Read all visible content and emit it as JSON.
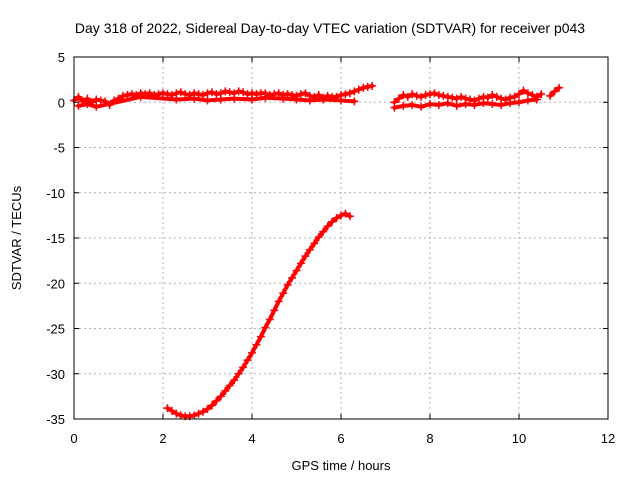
{
  "chart_data": {
    "type": "scatter",
    "title": "Day 318 of 2022, Sidereal Day-to-day VTEC variation (SDTVAR) for receiver p043",
    "xlabel": "GPS time / hours",
    "ylabel": "SDTVAR / TECUs",
    "xlim": [
      0,
      12
    ],
    "ylim": [
      -35,
      5
    ],
    "xticks": [
      0,
      2,
      4,
      6,
      8,
      10,
      12
    ],
    "yticks": [
      5,
      0,
      -5,
      -10,
      -15,
      -20,
      -25,
      -30,
      -35
    ],
    "grid": true,
    "legend": "none",
    "marker": "plus",
    "color": "#ff0000",
    "series": [
      {
        "x": [
          0.0,
          0.1,
          0.2,
          0.3,
          0.4,
          0.5,
          0.6,
          0.7,
          0.8,
          0.9,
          1.0,
          1.1,
          1.2,
          1.3,
          1.4,
          1.5,
          1.6,
          1.7,
          1.8,
          1.9,
          2.0,
          2.1,
          2.2,
          2.3,
          2.4,
          2.5,
          2.6,
          2.7,
          2.8,
          2.9,
          3.0,
          3.1,
          3.2,
          3.3,
          3.4,
          3.5,
          3.6,
          3.7,
          3.8,
          3.9,
          4.0,
          4.1,
          4.2,
          4.3,
          4.4,
          4.5,
          4.6,
          4.7,
          4.8,
          4.9,
          5.0,
          5.1,
          5.2,
          5.3,
          5.4,
          5.5,
          5.6,
          5.7,
          5.8,
          5.9,
          6.0,
          6.1,
          6.2,
          6.3,
          6.4,
          6.5,
          6.6,
          6.7
        ],
        "y": [
          0.2,
          0.6,
          0.1,
          0.4,
          0.0,
          0.3,
          0.2,
          0.1,
          -0.3,
          0.2,
          0.4,
          0.7,
          0.8,
          0.9,
          0.8,
          1.0,
          0.9,
          1.0,
          0.8,
          0.9,
          1.0,
          0.9,
          0.8,
          1.0,
          1.1,
          0.9,
          0.8,
          1.0,
          0.9,
          0.8,
          1.0,
          1.1,
          0.9,
          1.0,
          1.2,
          1.1,
          1.0,
          1.2,
          1.1,
          0.9,
          1.0,
          0.9,
          1.0,
          1.0,
          0.8,
          0.9,
          1.0,
          0.8,
          0.9,
          0.8,
          0.7,
          0.9,
          1.0,
          0.7,
          0.6,
          0.8,
          0.5,
          0.7,
          0.6,
          0.6,
          0.8,
          0.9,
          1.0,
          1.2,
          1.4,
          1.6,
          1.7,
          1.8
        ]
      },
      {
        "x": [
          0.1,
          0.3,
          0.5,
          1.5,
          2.3,
          2.7,
          3.0,
          3.3,
          3.6,
          4.0,
          4.3,
          4.7,
          5.0,
          5.3,
          5.6,
          6.0,
          6.3
        ],
        "y": [
          -0.4,
          -0.2,
          -0.5,
          0.6,
          0.3,
          0.4,
          0.2,
          0.3,
          0.4,
          0.3,
          0.5,
          0.4,
          0.3,
          0.2,
          0.3,
          0.2,
          0.1
        ]
      },
      {
        "x": [
          7.2,
          7.3,
          7.4,
          7.5,
          7.6,
          7.7,
          7.8,
          7.9,
          8.0,
          8.1,
          8.2,
          8.3,
          8.4,
          8.5,
          8.6,
          8.7,
          8.8,
          8.9,
          9.0,
          9.1,
          9.2,
          9.3,
          9.4,
          9.5,
          9.6,
          9.7,
          9.8,
          9.9,
          10.0,
          10.1,
          10.2,
          10.3,
          10.4,
          10.5
        ],
        "y": [
          0.0,
          0.4,
          0.8,
          0.6,
          0.9,
          0.7,
          0.6,
          0.8,
          0.9,
          1.0,
          0.8,
          0.7,
          0.6,
          0.5,
          0.4,
          0.6,
          0.4,
          0.3,
          0.2,
          0.4,
          0.6,
          0.5,
          0.8,
          0.6,
          0.4,
          0.3,
          0.5,
          0.6,
          0.9,
          1.3,
          1.0,
          0.8,
          0.6,
          0.9
        ]
      },
      {
        "x": [
          7.2,
          7.4,
          7.6,
          7.8,
          8.0,
          8.2,
          8.4,
          8.6,
          8.8,
          9.0,
          9.2,
          9.4,
          9.6,
          9.8,
          10.0,
          10.2,
          10.4
        ],
        "y": [
          -0.6,
          -0.4,
          -0.3,
          -0.5,
          -0.2,
          -0.3,
          -0.1,
          -0.4,
          -0.2,
          -0.3,
          -0.1,
          -0.2,
          -0.3,
          -0.1,
          0.0,
          0.2,
          0.3
        ]
      },
      {
        "x": [
          10.7,
          10.8,
          10.9
        ],
        "y": [
          0.7,
          1.2,
          1.6
        ]
      },
      {
        "x": [
          2.1,
          2.2,
          2.3,
          2.4,
          2.5,
          2.6,
          2.7,
          2.8,
          2.9,
          3.0,
          3.1,
          3.2,
          3.3,
          3.4,
          3.5,
          3.6,
          3.7,
          3.8,
          3.9,
          4.0,
          4.1,
          4.2,
          4.3,
          4.4,
          4.5,
          4.6,
          4.7,
          4.8,
          4.9,
          5.0,
          5.1,
          5.2,
          5.3,
          5.4,
          5.5,
          5.6,
          5.7,
          5.8,
          5.9,
          6.0,
          6.1,
          6.2
        ],
        "y": [
          -33.8,
          -34.1,
          -34.4,
          -34.6,
          -34.7,
          -34.7,
          -34.6,
          -34.4,
          -34.2,
          -33.9,
          -33.5,
          -33.0,
          -32.5,
          -31.9,
          -31.3,
          -30.7,
          -30.0,
          -29.3,
          -28.5,
          -27.7,
          -26.8,
          -25.9,
          -24.9,
          -24.0,
          -23.0,
          -22.0,
          -21.1,
          -20.2,
          -19.4,
          -18.6,
          -17.8,
          -17.0,
          -16.3,
          -15.6,
          -14.9,
          -14.3,
          -13.7,
          -13.2,
          -12.8,
          -12.5,
          -12.3,
          -12.6
        ]
      }
    ]
  }
}
